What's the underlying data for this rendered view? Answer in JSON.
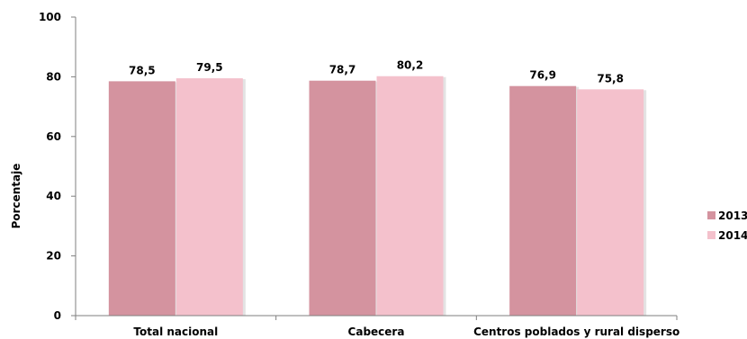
{
  "chart_data": {
    "type": "bar",
    "title": "",
    "xlabel": "",
    "ylabel": "Porcentaje",
    "ylim": [
      0,
      100
    ],
    "yticks": [
      0,
      20,
      40,
      60,
      80,
      100
    ],
    "categories": [
      "Total nacional",
      "Cabecera",
      "Centros poblados y rural disperso"
    ],
    "series": [
      {
        "name": "2013",
        "color": "#d4939f",
        "values": [
          78.5,
          78.7,
          76.9
        ],
        "labels": [
          "78,5",
          "78,7",
          "76,9"
        ]
      },
      {
        "name": "2014",
        "color": "#f4c1cc",
        "values": [
          79.5,
          80.2,
          75.8
        ],
        "labels": [
          "79,5",
          "80,2",
          "75,8"
        ]
      }
    ],
    "grid": false,
    "legend": "right"
  }
}
